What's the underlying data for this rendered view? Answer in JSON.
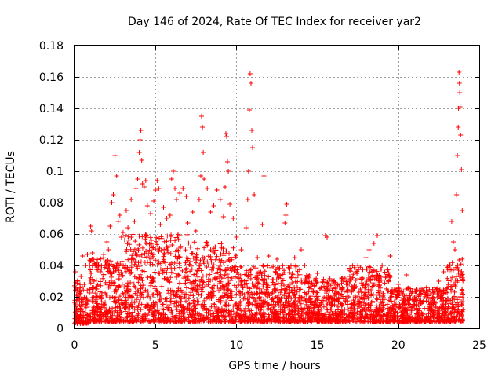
{
  "chart_data": {
    "type": "scatter",
    "title": "Day 146 of 2024, Rate Of TEC Index for receiver yar2",
    "xlabel": "GPS time / hours",
    "ylabel": "ROTI / TECUs",
    "xlim": [
      0,
      25
    ],
    "ylim": [
      0,
      0.18
    ],
    "xticks": [
      0,
      5,
      10,
      15,
      20,
      25
    ],
    "xtick_labels": [
      "0",
      "5",
      "10",
      "15",
      "20",
      "25"
    ],
    "yticks": [
      0,
      0.02,
      0.04,
      0.06,
      0.08,
      0.1,
      0.12,
      0.14,
      0.16,
      0.18
    ],
    "ytick_labels": [
      "0",
      "0.02",
      "0.04",
      "0.06",
      "0.08",
      "0.1",
      "0.12",
      "0.14",
      "0.16",
      "0.18"
    ],
    "grid": true,
    "marker": "+",
    "color": "#ff0000",
    "series": [
      {
        "name": "ROTI",
        "points": [
          [
            0.05,
            0.036
          ],
          [
            0.1,
            0.012
          ],
          [
            0.15,
            0.024
          ],
          [
            0.2,
            0.008
          ],
          [
            0.3,
            0.02
          ],
          [
            0.4,
            0.033
          ],
          [
            0.5,
            0.046
          ],
          [
            0.6,
            0.028
          ],
          [
            0.7,
            0.04
          ],
          [
            0.8,
            0.047
          ],
          [
            0.9,
            0.018
          ],
          [
            1.0,
            0.065
          ],
          [
            1.05,
            0.062
          ],
          [
            1.1,
            0.048
          ],
          [
            1.2,
            0.03
          ],
          [
            1.4,
            0.042
          ],
          [
            1.6,
            0.036
          ],
          [
            1.8,
            0.047
          ],
          [
            2.0,
            0.055
          ],
          [
            2.1,
            0.05
          ],
          [
            2.2,
            0.065
          ],
          [
            2.3,
            0.08
          ],
          [
            2.4,
            0.085
          ],
          [
            2.5,
            0.11
          ],
          [
            2.6,
            0.097
          ],
          [
            2.7,
            0.068
          ],
          [
            2.8,
            0.072
          ],
          [
            2.9,
            0.058
          ],
          [
            3.0,
            0.061
          ],
          [
            3.2,
            0.075
          ],
          [
            3.3,
            0.064
          ],
          [
            3.5,
            0.082
          ],
          [
            3.7,
            0.068
          ],
          [
            3.8,
            0.089
          ],
          [
            3.9,
            0.095
          ],
          [
            4.0,
            0.112
          ],
          [
            4.05,
            0.12
          ],
          [
            4.1,
            0.126
          ],
          [
            4.15,
            0.107
          ],
          [
            4.2,
            0.092
          ],
          [
            4.3,
            0.09
          ],
          [
            4.4,
            0.094
          ],
          [
            4.5,
            0.078
          ],
          [
            4.7,
            0.073
          ],
          [
            4.9,
            0.081
          ],
          [
            5.0,
            0.088
          ],
          [
            5.1,
            0.094
          ],
          [
            5.2,
            0.089
          ],
          [
            5.3,
            0.066
          ],
          [
            5.5,
            0.077
          ],
          [
            5.7,
            0.07
          ],
          [
            5.9,
            0.072
          ],
          [
            6.0,
            0.095
          ],
          [
            6.1,
            0.1
          ],
          [
            6.2,
            0.089
          ],
          [
            6.3,
            0.082
          ],
          [
            6.5,
            0.086
          ],
          [
            6.7,
            0.089
          ],
          [
            6.9,
            0.084
          ],
          [
            7.0,
            0.067
          ],
          [
            7.3,
            0.074
          ],
          [
            7.5,
            0.062
          ],
          [
            7.7,
            0.082
          ],
          [
            7.8,
            0.097
          ],
          [
            7.85,
            0.135
          ],
          [
            7.9,
            0.128
          ],
          [
            7.95,
            0.112
          ],
          [
            8.0,
            0.095
          ],
          [
            8.2,
            0.089
          ],
          [
            8.4,
            0.074
          ],
          [
            8.6,
            0.078
          ],
          [
            8.8,
            0.088
          ],
          [
            9.0,
            0.082
          ],
          [
            9.2,
            0.071
          ],
          [
            9.3,
            0.09
          ],
          [
            9.35,
            0.124
          ],
          [
            9.4,
            0.122
          ],
          [
            9.45,
            0.106
          ],
          [
            9.5,
            0.1
          ],
          [
            9.6,
            0.079
          ],
          [
            9.8,
            0.07
          ],
          [
            10.0,
            0.058
          ],
          [
            10.3,
            0.05
          ],
          [
            10.6,
            0.064
          ],
          [
            10.7,
            0.082
          ],
          [
            10.75,
            0.1
          ],
          [
            10.8,
            0.139
          ],
          [
            10.85,
            0.162
          ],
          [
            10.9,
            0.156
          ],
          [
            10.95,
            0.126
          ],
          [
            11.0,
            0.115
          ],
          [
            11.1,
            0.085
          ],
          [
            11.3,
            0.045
          ],
          [
            11.6,
            0.066
          ],
          [
            11.7,
            0.097
          ],
          [
            12.0,
            0.046
          ],
          [
            12.5,
            0.044
          ],
          [
            13.0,
            0.067
          ],
          [
            13.05,
            0.072
          ],
          [
            13.1,
            0.079
          ],
          [
            13.3,
            0.038
          ],
          [
            13.6,
            0.045
          ],
          [
            14.0,
            0.05
          ],
          [
            14.5,
            0.034
          ],
          [
            15.0,
            0.035
          ],
          [
            15.5,
            0.059
          ],
          [
            15.6,
            0.058
          ],
          [
            16.0,
            0.03
          ],
          [
            16.5,
            0.032
          ],
          [
            17.0,
            0.033
          ],
          [
            17.5,
            0.04
          ],
          [
            18.0,
            0.045
          ],
          [
            18.2,
            0.05
          ],
          [
            18.5,
            0.054
          ],
          [
            18.7,
            0.059
          ],
          [
            19.0,
            0.04
          ],
          [
            19.5,
            0.046
          ],
          [
            20.0,
            0.028
          ],
          [
            20.5,
            0.034
          ],
          [
            21.0,
            0.02
          ],
          [
            21.5,
            0.025
          ],
          [
            22.0,
            0.022
          ],
          [
            22.5,
            0.03
          ],
          [
            22.8,
            0.036
          ],
          [
            23.0,
            0.025
          ],
          [
            23.2,
            0.04
          ],
          [
            23.3,
            0.068
          ],
          [
            23.4,
            0.055
          ],
          [
            23.5,
            0.05
          ],
          [
            23.6,
            0.085
          ],
          [
            23.65,
            0.11
          ],
          [
            23.7,
            0.128
          ],
          [
            23.72,
            0.14
          ],
          [
            23.75,
            0.163
          ],
          [
            23.78,
            0.156
          ],
          [
            23.8,
            0.15
          ],
          [
            23.82,
            0.141
          ],
          [
            23.85,
            0.123
          ],
          [
            23.9,
            0.101
          ],
          [
            23.95,
            0.075
          ]
        ]
      }
    ],
    "dense_band": {
      "description": "thousands of points filling the lower region",
      "segments": [
        {
          "x_start": 0.0,
          "x_end": 0.9,
          "y_min": 0.003,
          "y_max": 0.032
        },
        {
          "x_start": 0.9,
          "x_end": 3.0,
          "y_min": 0.004,
          "y_max": 0.045
        },
        {
          "x_start": 3.0,
          "x_end": 7.0,
          "y_min": 0.004,
          "y_max": 0.06
        },
        {
          "x_start": 7.0,
          "x_end": 10.0,
          "y_min": 0.004,
          "y_max": 0.055
        },
        {
          "x_start": 10.0,
          "x_end": 14.5,
          "y_min": 0.004,
          "y_max": 0.04
        },
        {
          "x_start": 14.5,
          "x_end": 17.0,
          "y_min": 0.004,
          "y_max": 0.032
        },
        {
          "x_start": 17.0,
          "x_end": 19.5,
          "y_min": 0.004,
          "y_max": 0.04
        },
        {
          "x_start": 19.5,
          "x_end": 23.0,
          "y_min": 0.004,
          "y_max": 0.026
        },
        {
          "x_start": 23.0,
          "x_end": 24.0,
          "y_min": 0.004,
          "y_max": 0.045
        }
      ]
    }
  }
}
